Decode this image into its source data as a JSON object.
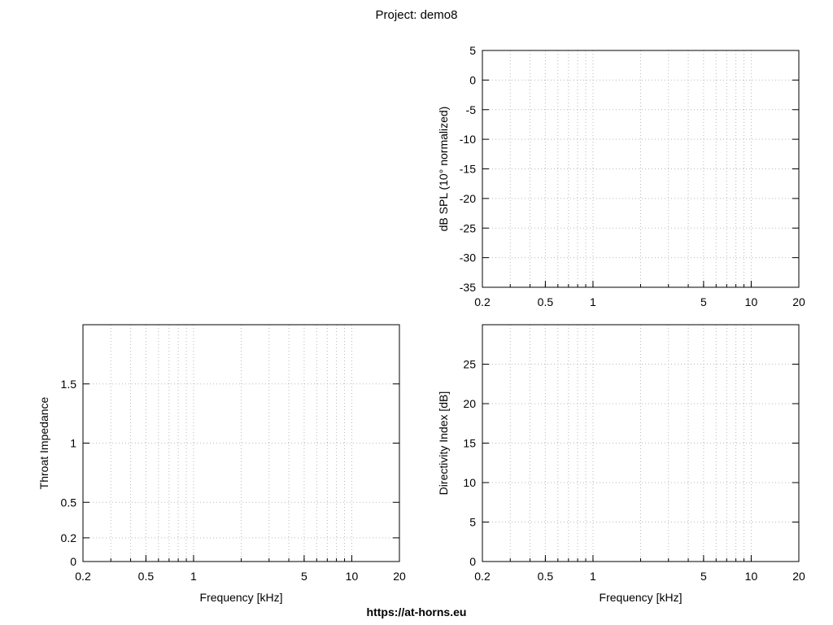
{
  "title": "Project: demo8",
  "footer": "https://at-horns.eu",
  "chart_data": [
    {
      "id": "spl",
      "type": "line",
      "xscale": "log",
      "xlim": [
        0.2,
        20
      ],
      "ylim": [
        -35,
        5
      ],
      "xticks": [
        0.2,
        0.5,
        1,
        5,
        10,
        20
      ],
      "xtick_labels": [
        "0.2",
        "0.5",
        "1",
        "5",
        "10",
        "20"
      ],
      "yticks": [
        -35,
        -30,
        -25,
        -20,
        -15,
        -10,
        -5,
        0,
        5
      ],
      "ytick_labels": [
        "-35",
        "-30",
        "-25",
        "-20",
        "-15",
        "-10",
        "-5",
        "0",
        "5"
      ],
      "xlabel": "",
      "ylabel": "dB SPL (10° normalized)",
      "grid": true,
      "series": []
    },
    {
      "id": "impedance",
      "type": "line",
      "xscale": "log",
      "xlim": [
        0.2,
        20
      ],
      "ylim": [
        0,
        2
      ],
      "xticks": [
        0.2,
        0.5,
        1,
        5,
        10,
        20
      ],
      "xtick_labels": [
        "0.2",
        "0.5",
        "1",
        "5",
        "10",
        "20"
      ],
      "yticks": [
        0,
        0.2,
        0.5,
        1,
        1.5
      ],
      "ytick_labels": [
        "0",
        "0.2",
        "0.5",
        "1",
        "1.5"
      ],
      "xlabel": "Frequency [kHz]",
      "ylabel": "Throat Impedance",
      "grid": true,
      "series": []
    },
    {
      "id": "di",
      "type": "line",
      "xscale": "log",
      "xlim": [
        0.2,
        20
      ],
      "ylim": [
        0,
        30
      ],
      "xticks": [
        0.2,
        0.5,
        1,
        5,
        10,
        20
      ],
      "xtick_labels": [
        "0.2",
        "0.5",
        "1",
        "5",
        "10",
        "20"
      ],
      "yticks": [
        0,
        5,
        10,
        15,
        20,
        25
      ],
      "ytick_labels": [
        "0",
        "5",
        "10",
        "15",
        "20",
        "25"
      ],
      "xlabel": "Frequency [kHz]",
      "ylabel": "Directivity Index [dB]",
      "grid": true,
      "series": []
    }
  ]
}
